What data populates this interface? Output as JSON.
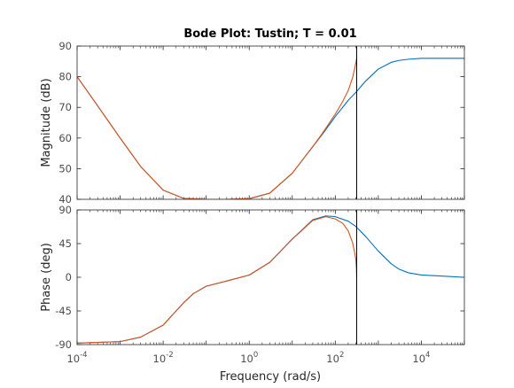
{
  "chart_data": {
    "type": "line",
    "title": "Bode Plot: Tustin; T = 0.01",
    "xlabel": "Frequency  (rad/s)",
    "x_scale": "log",
    "xlim": [
      0.0001,
      100000
    ],
    "x_tick_values": [
      0.0001,
      0.01,
      1,
      100,
      10000
    ],
    "x_tick_labels": [
      "10^-4",
      "10^-2",
      "10^0",
      "10^2",
      "10^4"
    ],
    "nyquist_marker": {
      "x": 314.16,
      "color": "#000000"
    },
    "series_colors": {
      "continuous": "#0072BD",
      "discrete": "#D95319"
    },
    "panels": [
      {
        "id": "magnitude",
        "ylabel": "Magnitude (dB)",
        "ylim": [
          40,
          90
        ],
        "y_ticks": [
          40,
          50,
          60,
          70,
          80,
          90
        ],
        "series": [
          {
            "key": "continuous",
            "x": [
              0.0001,
              0.0003,
              0.001,
              0.003,
              0.01,
              0.03,
              0.1,
              0.3,
              1,
              3,
              10,
              20,
              30,
              50,
              100,
              200,
              314,
              500,
              1000,
              2000,
              3000,
              5000,
              10000,
              100000
            ],
            "y": [
              80,
              70.5,
              60,
              50.7,
              43,
              40.3,
              40,
              40,
              40.2,
              42,
              48.5,
              54,
              57.2,
              61.2,
              67,
              72.3,
              75.2,
              78.5,
              82.5,
              84.7,
              85.3,
              85.7,
              86,
              86
            ]
          },
          {
            "key": "discrete",
            "x": [
              0.0001,
              0.0003,
              0.001,
              0.003,
              0.01,
              0.03,
              0.1,
              0.3,
              1,
              3,
              10,
              20,
              30,
              50,
              100,
              150,
              200,
              250,
              280,
              300,
              314
            ],
            "y": [
              80,
              70.5,
              60,
              50.7,
              43,
              40.3,
              40,
              40,
              40.2,
              42,
              48.5,
              54,
              57.2,
              61.5,
              67.8,
              72,
              75.5,
              79.5,
              82.5,
              84.5,
              86
            ]
          }
        ]
      },
      {
        "id": "phase",
        "ylabel": "Phase (deg)",
        "ylim": [
          -90,
          90
        ],
        "y_ticks": [
          -90,
          -45,
          0,
          45,
          90
        ],
        "series": [
          {
            "key": "continuous",
            "x": [
              0.0001,
              0.001,
              0.003,
              0.01,
              0.02,
              0.03,
              0.05,
              0.1,
              0.3,
              1,
              3,
              10,
              30,
              60,
              100,
              200,
              300,
              500,
              1000,
              2000,
              3000,
              5000,
              10000,
              100000
            ],
            "y": [
              -88,
              -86,
              -80,
              -64,
              -45,
              -34,
              -22,
              -12,
              -5,
              3,
              20,
              51,
              77,
              82,
              81,
              75,
              68,
              55,
              35,
              18,
              11,
              6,
              3,
              0
            ]
          },
          {
            "key": "discrete",
            "x": [
              0.0001,
              0.001,
              0.003,
              0.01,
              0.02,
              0.03,
              0.05,
              0.1,
              0.3,
              1,
              3,
              10,
              30,
              60,
              100,
              150,
              200,
              250,
              280,
              300,
              310,
              314
            ],
            "y": [
              -88,
              -86,
              -80,
              -64,
              -45,
              -34,
              -22,
              -12,
              -5,
              3,
              20,
              51,
              76,
              81,
              78,
              72,
              62,
              47,
              34,
              24,
              12,
              0
            ]
          }
        ]
      }
    ]
  }
}
